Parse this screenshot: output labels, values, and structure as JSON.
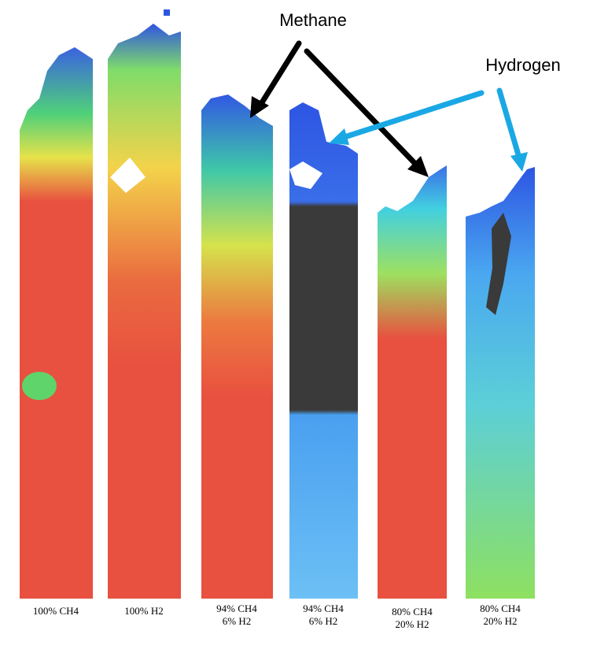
{
  "annotations": {
    "methane": "Methane",
    "hydrogen": "Hydrogen"
  },
  "panels": [
    {
      "lines": [
        "100% CH4"
      ]
    },
    {
      "lines": [
        "100% H2"
      ]
    },
    {
      "lines": [
        "94% CH4",
        "6% H2"
      ]
    },
    {
      "lines": [
        "94% CH4",
        "6% H2"
      ]
    },
    {
      "lines": [
        "80% CH4",
        "20% H2"
      ]
    },
    {
      "lines": [
        "80% CH4",
        "20% H2"
      ]
    }
  ]
}
